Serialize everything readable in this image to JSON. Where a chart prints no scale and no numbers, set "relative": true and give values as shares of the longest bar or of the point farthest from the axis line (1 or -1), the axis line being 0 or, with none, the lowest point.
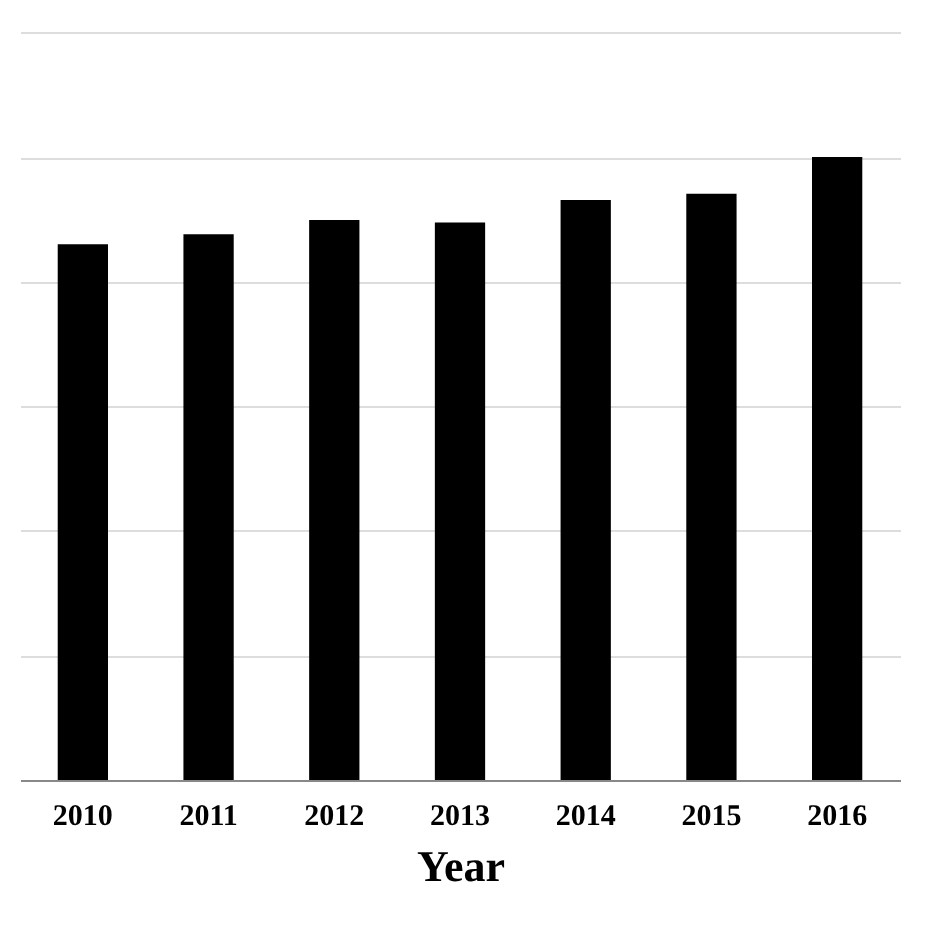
{
  "chart_data": {
    "type": "bar",
    "relative": true,
    "xlabel": "Year",
    "categories": [
      "2010",
      "2011",
      "2012",
      "2013",
      "2014",
      "2015",
      "2016"
    ],
    "series": [
      {
        "color": "#000000",
        "values": [
          0.86,
          0.876,
          0.899,
          0.895,
          0.931,
          0.941,
          1
        ]
      }
    ],
    "grid": "y",
    "legend": false
  }
}
